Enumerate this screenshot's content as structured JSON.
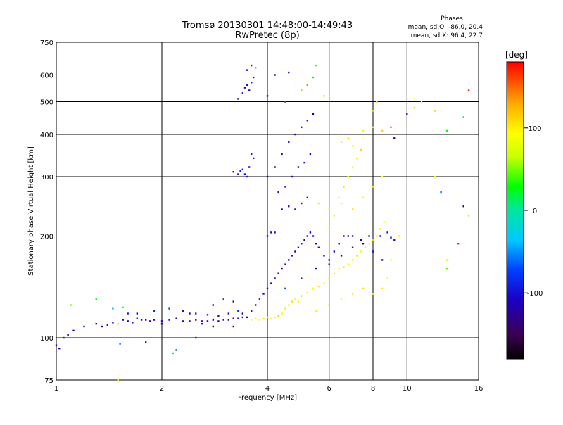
{
  "chart_data": {
    "type": "scatter",
    "title": "Tromsø 20130301 14:48:00-14:49:43",
    "subtitle": "RwPretec (8p)",
    "xlabel": "Frequency [MHz]",
    "ylabel": "Stationary phase Virtual Height [km]",
    "x_scale": "log",
    "y_scale": "log",
    "xlim": [
      1,
      16
    ],
    "ylim": [
      75,
      750
    ],
    "x_ticks": [
      1,
      2,
      4,
      6,
      8,
      10,
      16
    ],
    "y_ticks": [
      75,
      100,
      200,
      300,
      400,
      500,
      600,
      750
    ],
    "grid": true,
    "phases_box": {
      "heading": "Phases",
      "line_o": "mean, sd,O: -86.0, 20.4",
      "line_x": "mean, sd,X: 96.4, 22.7"
    },
    "colorbar": {
      "label": "[deg]",
      "range": [
        -180,
        180
      ],
      "ticks": [
        100,
        0,
        -100
      ],
      "colormap": "rainbow"
    },
    "series": [
      {
        "points": [
          [
            1.0,
            95,
            -120
          ],
          [
            1.02,
            93,
            -110
          ],
          [
            1.05,
            100,
            -100
          ],
          [
            1.08,
            102,
            -130
          ],
          [
            1.12,
            105,
            -115
          ],
          [
            1.2,
            108,
            -100
          ],
          [
            1.3,
            110,
            -105
          ],
          [
            1.35,
            108,
            -120
          ],
          [
            1.4,
            109,
            -95
          ],
          [
            1.45,
            111,
            -110
          ],
          [
            1.5,
            110,
            60
          ],
          [
            1.55,
            113,
            -100
          ],
          [
            1.6,
            112,
            -120
          ],
          [
            1.65,
            111,
            -110
          ],
          [
            1.7,
            114,
            -95
          ],
          [
            1.75,
            113,
            -105
          ],
          [
            1.8,
            113,
            -115
          ],
          [
            1.85,
            112,
            -100
          ],
          [
            1.9,
            113,
            -110
          ],
          [
            2.0,
            112,
            -105
          ],
          [
            2.1,
            113,
            -100
          ],
          [
            2.2,
            114,
            -120
          ],
          [
            2.3,
            112,
            -110
          ],
          [
            2.4,
            112,
            -105
          ],
          [
            2.5,
            113,
            -115
          ],
          [
            2.6,
            112,
            -100
          ],
          [
            2.7,
            112,
            -110
          ],
          [
            2.8,
            113,
            -105
          ],
          [
            2.9,
            112,
            -120
          ],
          [
            3.0,
            113,
            -100
          ],
          [
            3.1,
            113,
            -110
          ],
          [
            3.2,
            114,
            -105
          ],
          [
            3.3,
            114,
            -100
          ],
          [
            3.4,
            115,
            -95
          ],
          [
            3.5,
            115,
            -110
          ],
          [
            1.6,
            118,
            -90
          ],
          [
            1.9,
            120,
            -80
          ],
          [
            2.1,
            122,
            -70
          ],
          [
            2.3,
            120,
            -100
          ],
          [
            2.5,
            118,
            -90
          ],
          [
            2.7,
            117,
            -85
          ],
          [
            2.9,
            116,
            -95
          ],
          [
            3.1,
            118,
            -100
          ],
          [
            3.3,
            120,
            -80
          ],
          [
            3.4,
            118,
            -110
          ],
          [
            1.52,
            96,
            -60
          ],
          [
            1.8,
            97,
            -90
          ],
          [
            2.2,
            92,
            -70
          ],
          [
            2.6,
            110,
            -95
          ],
          [
            1.45,
            122,
            -40
          ],
          [
            1.55,
            123,
            40
          ],
          [
            1.7,
            118,
            -105
          ],
          [
            2.0,
            110,
            -110
          ],
          [
            2.4,
            118,
            -120
          ],
          [
            2.8,
            108,
            -110
          ],
          [
            3.2,
            108,
            -100
          ],
          [
            3.6,
            113,
            90
          ],
          [
            3.7,
            114,
            100
          ],
          [
            3.8,
            113,
            85
          ],
          [
            3.9,
            114,
            95
          ],
          [
            4.0,
            115,
            105
          ],
          [
            4.1,
            114,
            90
          ],
          [
            4.2,
            115,
            100
          ],
          [
            4.3,
            116,
            110
          ],
          [
            4.4,
            118,
            95
          ],
          [
            4.5,
            122,
            100
          ],
          [
            4.6,
            125,
            85
          ],
          [
            4.7,
            128,
            105
          ],
          [
            4.8,
            130,
            90
          ],
          [
            4.9,
            128,
            95
          ],
          [
            5.0,
            133,
            110
          ],
          [
            5.2,
            136,
            100
          ],
          [
            5.4,
            140,
            90
          ],
          [
            5.6,
            142,
            100
          ],
          [
            5.8,
            145,
            95
          ],
          [
            6.0,
            150,
            105
          ],
          [
            6.2,
            155,
            100
          ],
          [
            6.4,
            160,
            90
          ],
          [
            6.6,
            162,
            110
          ],
          [
            6.8,
            165,
            95
          ],
          [
            7.0,
            170,
            100
          ],
          [
            7.2,
            175,
            105
          ],
          [
            7.4,
            180,
            90
          ],
          [
            7.6,
            185,
            100
          ],
          [
            7.8,
            190,
            95
          ],
          [
            8.0,
            195,
            110
          ],
          [
            8.2,
            200,
            90
          ],
          [
            8.4,
            210,
            100
          ],
          [
            8.6,
            220,
            95
          ],
          [
            3.6,
            120,
            -100
          ],
          [
            3.7,
            125,
            -110
          ],
          [
            3.8,
            130,
            -90
          ],
          [
            3.9,
            135,
            -105
          ],
          [
            4.0,
            140,
            -100
          ],
          [
            4.1,
            145,
            -110
          ],
          [
            4.2,
            150,
            -95
          ],
          [
            4.3,
            155,
            -100
          ],
          [
            4.4,
            160,
            -115
          ],
          [
            4.5,
            165,
            -100
          ],
          [
            4.6,
            170,
            -105
          ],
          [
            4.7,
            175,
            -95
          ],
          [
            4.8,
            180,
            -110
          ],
          [
            4.9,
            185,
            -100
          ],
          [
            5.0,
            190,
            -105
          ],
          [
            5.1,
            195,
            -120
          ],
          [
            5.2,
            200,
            -100
          ],
          [
            5.3,
            205,
            -110
          ],
          [
            5.4,
            200,
            -95
          ],
          [
            5.5,
            190,
            -105
          ],
          [
            5.6,
            185,
            -100
          ],
          [
            5.8,
            175,
            -110
          ],
          [
            6.0,
            170,
            -95
          ],
          [
            6.2,
            180,
            -100
          ],
          [
            6.4,
            190,
            -110
          ],
          [
            6.6,
            200,
            -105
          ],
          [
            6.8,
            200,
            -95
          ],
          [
            7.0,
            200,
            -100
          ],
          [
            7.4,
            195,
            -110
          ],
          [
            7.8,
            200,
            -100
          ],
          [
            8.4,
            200,
            -105
          ],
          [
            8.8,
            205,
            -95
          ],
          [
            9.0,
            198,
            -100
          ],
          [
            9.2,
            195,
            -90
          ],
          [
            3.2,
            310,
            -100
          ],
          [
            3.3,
            305,
            -105
          ],
          [
            3.35,
            312,
            -95
          ],
          [
            3.4,
            315,
            -110
          ],
          [
            3.45,
            305,
            -100
          ],
          [
            3.5,
            300,
            -90
          ],
          [
            3.55,
            320,
            -105
          ],
          [
            3.6,
            350,
            -100
          ],
          [
            3.65,
            340,
            -95
          ],
          [
            3.4,
            530,
            -100
          ],
          [
            3.45,
            550,
            -105
          ],
          [
            3.5,
            560,
            -95
          ],
          [
            3.55,
            540,
            -110
          ],
          [
            3.6,
            570,
            -100
          ],
          [
            3.65,
            590,
            -90
          ],
          [
            3.5,
            620,
            -100
          ],
          [
            3.6,
            640,
            -95
          ],
          [
            3.7,
            630,
            -30
          ],
          [
            3.3,
            510,
            -110
          ],
          [
            4.0,
            200,
            -100
          ],
          [
            4.1,
            205,
            -105
          ],
          [
            4.2,
            205,
            -100
          ],
          [
            4.4,
            240,
            -110
          ],
          [
            4.6,
            245,
            -100
          ],
          [
            4.8,
            240,
            -105
          ],
          [
            5.0,
            250,
            -95
          ],
          [
            5.2,
            260,
            -100
          ],
          [
            5.6,
            250,
            80
          ],
          [
            6.0,
            240,
            100
          ],
          [
            6.5,
            250,
            90
          ],
          [
            7.0,
            240,
            110
          ],
          [
            7.5,
            260,
            95
          ],
          [
            8.0,
            280,
            100
          ],
          [
            8.5,
            300,
            90
          ],
          [
            6.5,
            380,
            80
          ],
          [
            6.8,
            390,
            100
          ],
          [
            7.0,
            370,
            95
          ],
          [
            7.5,
            410,
            85
          ],
          [
            8.0,
            420,
            100
          ],
          [
            8.5,
            410,
            110
          ],
          [
            9.0,
            420,
            150
          ],
          [
            9.2,
            390,
            -100
          ],
          [
            8.0,
            470,
            60
          ],
          [
            8.2,
            500,
            80
          ],
          [
            5.2,
            560,
            140
          ],
          [
            5.0,
            540,
            130
          ],
          [
            4.5,
            500,
            -80
          ],
          [
            4.0,
            520,
            -100
          ],
          [
            4.2,
            600,
            -110
          ],
          [
            4.6,
            610,
            -90
          ],
          [
            5.5,
            640,
            40
          ],
          [
            5.4,
            590,
            20
          ],
          [
            5.8,
            520,
            60
          ],
          [
            10.5,
            510,
            90
          ],
          [
            11.0,
            500,
            100
          ],
          [
            12.0,
            470,
            110
          ],
          [
            13.0,
            410,
            30
          ],
          [
            14.5,
            450,
            10
          ],
          [
            15.0,
            540,
            170
          ],
          [
            15.0,
            230,
            60
          ],
          [
            14.5,
            245,
            -110
          ],
          [
            14.0,
            190,
            170
          ],
          [
            13.0,
            170,
            80
          ],
          [
            13.0,
            160,
            40
          ],
          [
            12.0,
            300,
            90
          ],
          [
            12.5,
            270,
            -60
          ],
          [
            10.5,
            480,
            110
          ],
          [
            10.0,
            460,
            -90
          ],
          [
            9.5,
            200,
            100
          ],
          [
            9.0,
            170,
            90
          ],
          [
            8.8,
            150,
            95
          ],
          [
            8.5,
            140,
            100
          ],
          [
            8.0,
            135,
            90
          ],
          [
            7.5,
            140,
            105
          ],
          [
            7.0,
            135,
            100
          ],
          [
            6.5,
            130,
            90
          ],
          [
            6.0,
            125,
            110
          ],
          [
            5.5,
            120,
            95
          ],
          [
            4.5,
            140,
            -80
          ],
          [
            5.0,
            150,
            -90
          ],
          [
            5.5,
            160,
            -100
          ],
          [
            6.0,
            165,
            -95
          ],
          [
            6.5,
            175,
            -105
          ],
          [
            7.0,
            185,
            -100
          ],
          [
            7.5,
            190,
            -110
          ],
          [
            8.0,
            180,
            -95
          ],
          [
            8.5,
            170,
            -100
          ],
          [
            6.0,
            210,
            80
          ],
          [
            6.2,
            230,
            100
          ],
          [
            6.4,
            260,
            90
          ],
          [
            6.6,
            280,
            110
          ],
          [
            6.8,
            300,
            95
          ],
          [
            7.0,
            320,
            100
          ],
          [
            7.2,
            340,
            90
          ],
          [
            7.4,
            360,
            110
          ],
          [
            4.0,
            300,
            -100
          ],
          [
            4.2,
            320,
            -110
          ],
          [
            4.4,
            350,
            -95
          ],
          [
            4.6,
            380,
            -100
          ],
          [
            4.8,
            400,
            -105
          ],
          [
            5.0,
            420,
            -90
          ],
          [
            5.2,
            440,
            -100
          ],
          [
            5.4,
            460,
            -110
          ],
          [
            4.3,
            270,
            -100
          ],
          [
            4.5,
            280,
            -90
          ],
          [
            4.7,
            300,
            -100
          ],
          [
            4.9,
            320,
            -105
          ],
          [
            5.1,
            330,
            -95
          ],
          [
            5.3,
            350,
            -100
          ],
          [
            2.5,
            100,
            -90
          ],
          [
            2.8,
            125,
            -100
          ],
          [
            3.0,
            130,
            -80
          ],
          [
            3.2,
            128,
            -95
          ],
          [
            1.5,
            75,
            80
          ],
          [
            2.15,
            90,
            -20
          ],
          [
            1.1,
            125,
            50
          ],
          [
            1.3,
            130,
            30
          ]
        ]
      }
    ]
  }
}
